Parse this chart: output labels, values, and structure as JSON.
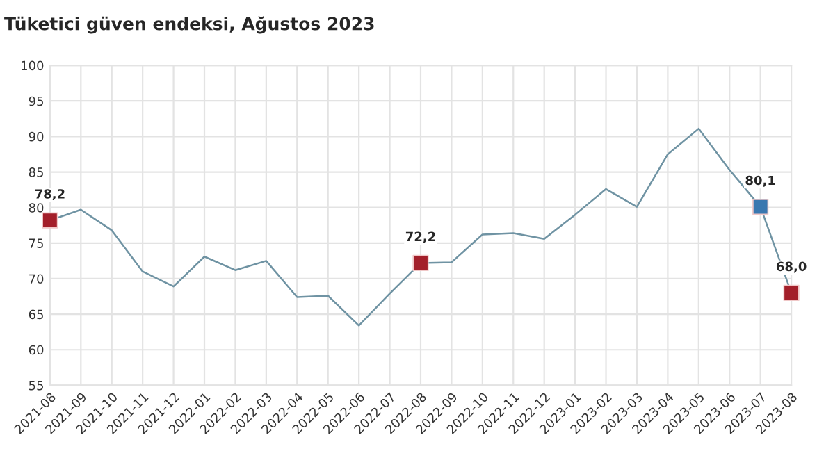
{
  "chart_data": {
    "type": "line",
    "title": "Tüketici güven endeksi, Ağustos 2023",
    "categories": [
      "2021-08",
      "2021-09",
      "2021-10",
      "2021-11",
      "2021-12",
      "2022-01",
      "2022-02",
      "2022-03",
      "2022-04",
      "2022-05",
      "2022-06",
      "2022-07",
      "2022-08",
      "2022-09",
      "2022-10",
      "2022-11",
      "2022-12",
      "2023-01",
      "2023-02",
      "2023-03",
      "2023-04",
      "2023-05",
      "2023-06",
      "2023-07",
      "2023-08"
    ],
    "series": [
      {
        "type": "line",
        "color": "#6f93a3",
        "marker": "none",
        "values": [
          78.2,
          79.7,
          76.8,
          71.0,
          68.9,
          73.1,
          71.2,
          72.5,
          67.4,
          67.6,
          63.4,
          67.9,
          72.2,
          72.3,
          76.2,
          76.4,
          75.6,
          79.0,
          82.6,
          80.1,
          87.5,
          91.1,
          85.3,
          80.1,
          68.0
        ]
      },
      {
        "type": "scatter",
        "marker": "square",
        "colors": [
          "#a31f2a",
          null,
          null,
          null,
          null,
          null,
          null,
          null,
          null,
          null,
          null,
          null,
          "#a31f2a",
          null,
          null,
          null,
          null,
          null,
          null,
          null,
          null,
          null,
          null,
          "#3a78b0",
          "#a31f2a"
        ],
        "values": [
          78.2,
          null,
          null,
          null,
          null,
          null,
          null,
          null,
          null,
          null,
          null,
          null,
          72.2,
          null,
          null,
          null,
          null,
          null,
          null,
          null,
          null,
          null,
          null,
          80.1,
          68.0
        ],
        "value_labels": [
          "78,2",
          null,
          null,
          null,
          null,
          null,
          null,
          null,
          null,
          null,
          null,
          null,
          "72,2",
          null,
          null,
          null,
          null,
          null,
          null,
          null,
          null,
          null,
          null,
          "80,1",
          "68,0"
        ]
      }
    ],
    "ylim": [
      55,
      100
    ],
    "yticks": [
      55,
      60,
      65,
      70,
      75,
      80,
      85,
      90,
      95,
      100
    ],
    "grid": true,
    "legend": false
  }
}
